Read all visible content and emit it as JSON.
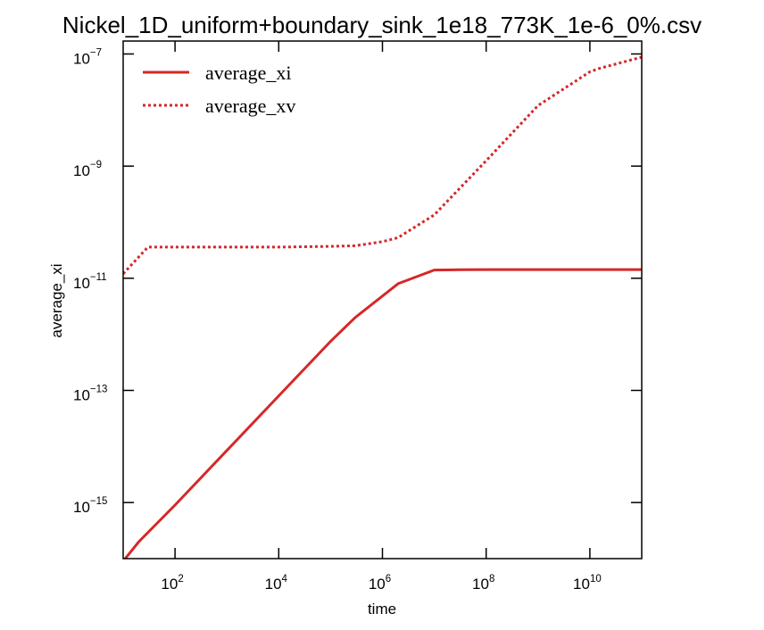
{
  "chart_data": {
    "type": "line",
    "title": "Nickel_1D_uniform+boundary_sink_1e18_773K_1e-6_0%.csv",
    "xlabel": "time",
    "ylabel": "average_xi",
    "xscale": "log",
    "yscale": "log",
    "xlim": [
      10,
      100000000000
    ],
    "ylim": [
      1e-16,
      1.7e-07
    ],
    "xticks": [
      {
        "base": "10",
        "exp": "2",
        "value": 100
      },
      {
        "base": "10",
        "exp": "4",
        "value": 10000
      },
      {
        "base": "10",
        "exp": "6",
        "value": 1000000
      },
      {
        "base": "10",
        "exp": "8",
        "value": 100000000
      },
      {
        "base": "10",
        "exp": "10",
        "value": 10000000000
      }
    ],
    "yticks": [
      {
        "base": "10",
        "exp": "−15",
        "value": 1e-15
      },
      {
        "base": "10",
        "exp": "−13",
        "value": 1e-13
      },
      {
        "base": "10",
        "exp": "−11",
        "value": 1e-11
      },
      {
        "base": "10",
        "exp": "−9",
        "value": 1e-09
      },
      {
        "base": "10",
        "exp": "−7",
        "value": 1e-07
      }
    ],
    "grid": false,
    "legend_position": "top-left",
    "series": [
      {
        "name": "average_xi",
        "color": "#d62728",
        "style": "solid",
        "x": [
          10,
          20,
          100,
          1000,
          10000,
          100000,
          300000,
          2000000,
          10000000,
          30000000,
          100000000,
          1000000000,
          10000000000,
          100000000000
        ],
        "y": [
          9e-17,
          2e-16,
          9e-16,
          8.5e-15,
          8e-14,
          7.5e-13,
          2e-12,
          8e-12,
          1.4e-11,
          1.42e-11,
          1.43e-11,
          1.43e-11,
          1.43e-11,
          1.43e-11
        ]
      },
      {
        "name": "average_xv",
        "color": "#d62728",
        "style": "dotted",
        "x": [
          10,
          30,
          100,
          1000,
          10000,
          100000,
          300000,
          1000000,
          2000000,
          10000000,
          100000000,
          1000000000,
          10000000000,
          15000000000,
          100000000000
        ],
        "y": [
          1.2e-11,
          3.6e-11,
          3.6e-11,
          3.6e-11,
          3.6e-11,
          3.7e-11,
          3.8e-11,
          4.5e-11,
          5.3e-11,
          1.35e-10,
          1.25e-09,
          1.2e-08,
          4.8e-08,
          5.5e-08,
          8.8e-08
        ]
      }
    ]
  }
}
